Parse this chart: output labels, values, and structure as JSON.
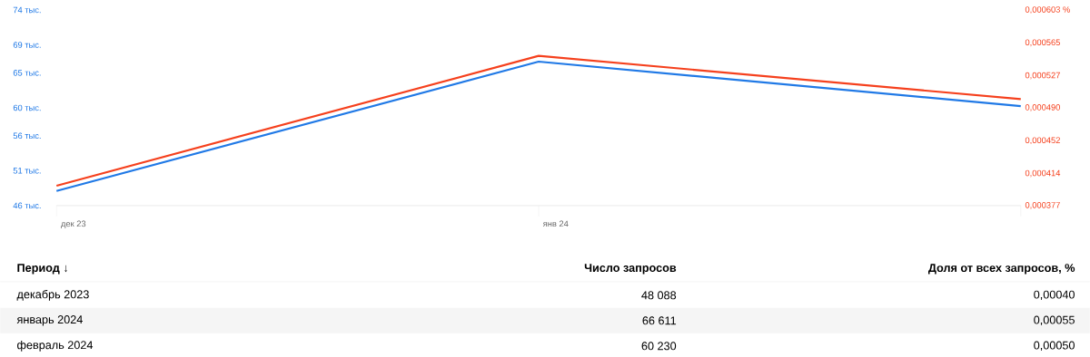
{
  "chart_data": {
    "type": "line",
    "categories": [
      "дек 23",
      "янв 24",
      null
    ],
    "series": [
      {
        "color": "#2079e6",
        "values": [
          48.088,
          66.611,
          60.23
        ]
      },
      {
        "color": "#f5401d",
        "axis": "y2",
        "values": [
          0.0004,
          0.00055,
          0.0005
        ]
      }
    ],
    "ylim": [
      46,
      74
    ],
    "yticks": [
      {
        "value": 46,
        "label": "46 тыс."
      },
      {
        "value": 51,
        "label": "51 тыс."
      },
      {
        "value": 56,
        "label": "56 тыс."
      },
      {
        "value": 60,
        "label": "60 тыс."
      },
      {
        "value": 65,
        "label": "65 тыс."
      },
      {
        "value": 69,
        "label": "69 тыс."
      },
      {
        "value": 74,
        "label": "74 тыс."
      }
    ],
    "y2lim": [
      0.000377,
      0.000603
    ],
    "y2ticks": [
      {
        "value": 0.000377,
        "label": "0,000377"
      },
      {
        "value": 0.000414,
        "label": "0,000414"
      },
      {
        "value": 0.000452,
        "label": "0,000452"
      },
      {
        "value": 0.00049,
        "label": "0,000490"
      },
      {
        "value": 0.000527,
        "label": "0,000527"
      },
      {
        "value": 0.000565,
        "label": "0,000565"
      },
      {
        "value": 0.000603,
        "label": "0,000603 %"
      }
    ],
    "annotations": [
      "Период ↓",
      "Число запросов",
      "Доля от всех запросов, %",
      "декабрь 2023",
      "48 088",
      "0,00040",
      "январь 2024",
      "66 611",
      "0,00055",
      "февраль 2024",
      "60 230",
      "0,00050"
    ],
    "legend": false,
    "grid": false,
    "marker": "none",
    "line_style": "solid"
  }
}
